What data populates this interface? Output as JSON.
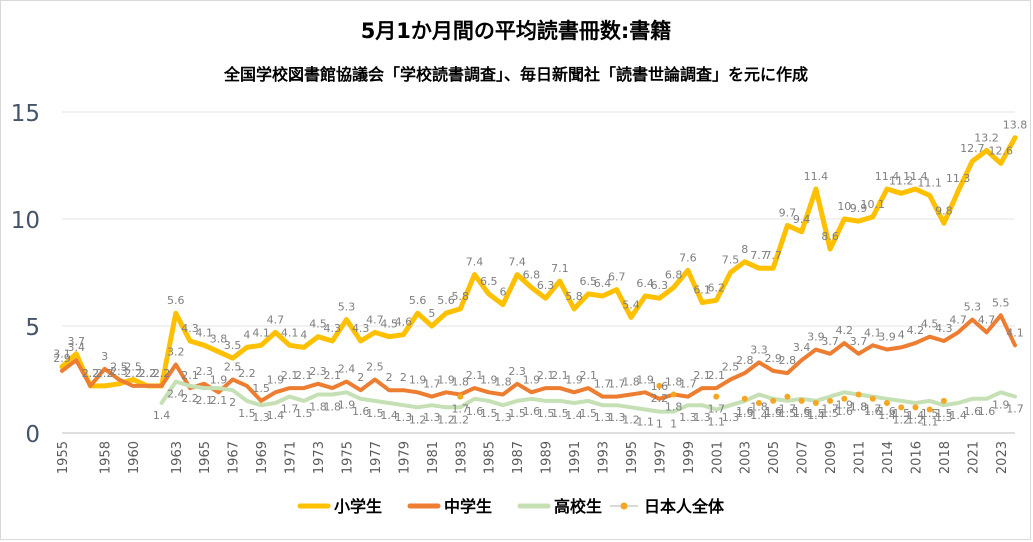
{
  "chart_data": {
    "type": "line",
    "title": "5月1か月間の平均読書冊数:書籍",
    "subtitle": "全国学校図書館協議会「学校読書調査」、毎日新聞社「読書世論調査」を元に作成",
    "xlabel": "",
    "ylabel": "",
    "ylim": [
      0,
      15
    ],
    "yticks": [
      0,
      5,
      10,
      15
    ],
    "grid": true,
    "legend_position": "bottom",
    "x": [
      1955,
      1956,
      1957,
      1958,
      1959,
      1960,
      1961,
      1962,
      1963,
      1964,
      1965,
      1966,
      1967,
      1968,
      1969,
      1970,
      1971,
      1972,
      1973,
      1974,
      1975,
      1976,
      1977,
      1978,
      1979,
      1980,
      1981,
      1982,
      1983,
      1984,
      1985,
      1986,
      1987,
      1988,
      1989,
      1990,
      1991,
      1992,
      1993,
      1994,
      1995,
      1996,
      1997,
      1998,
      1999,
      2000,
      2001,
      2002,
      2003,
      2004,
      2005,
      2006,
      2007,
      2008,
      2009,
      2010,
      2011,
      2012,
      2014,
      2015,
      2016,
      2017,
      2018,
      2019,
      2021,
      2022,
      2023,
      2024
    ],
    "xticks": [
      1955,
      1958,
      1960,
      1963,
      1965,
      1967,
      1969,
      1971,
      1973,
      1975,
      1977,
      1979,
      1981,
      1983,
      1985,
      1987,
      1989,
      1991,
      1993,
      1995,
      1997,
      1999,
      2001,
      2003,
      2005,
      2007,
      2009,
      2011,
      2014,
      2016,
      2018,
      2021,
      2023
    ],
    "series": [
      {
        "name": "小学生",
        "color": "#ffc000",
        "width": 5,
        "values": [
          3.1,
          3.7,
          2.2,
          2.2,
          2.3,
          2.5,
          2.2,
          2.2,
          5.6,
          4.3,
          4.1,
          3.8,
          3.5,
          4,
          4.1,
          4.7,
          4.1,
          4,
          4.5,
          4.3,
          5.3,
          4.3,
          4.7,
          4.5,
          4.6,
          5.6,
          5,
          5.6,
          5.8,
          7.4,
          6.5,
          6,
          7.4,
          6.8,
          6.3,
          7.1,
          5.8,
          6.5,
          6.4,
          6.7,
          5.4,
          6.4,
          6.3,
          6.8,
          7.6,
          6.1,
          6.2,
          7.5,
          8,
          7.7,
          7.7,
          9.7,
          9.4,
          11.4,
          8.6,
          10,
          9.9,
          10.1,
          11.4,
          11.2,
          11.4,
          11.1,
          9.8,
          11.3,
          12.7,
          13.2,
          12.6,
          13.8
        ]
      },
      {
        "name": "中学生",
        "color": "#ed7d31",
        "width": 4,
        "values": [
          2.9,
          3.4,
          2.2,
          3,
          2.5,
          2.2,
          2.2,
          2.2,
          3.2,
          2.1,
          2.3,
          1.9,
          2.5,
          2.2,
          1.5,
          1.9,
          2.1,
          2.1,
          2.3,
          2.1,
          2.4,
          2,
          2.5,
          2,
          2,
          1.9,
          1.7,
          1.9,
          1.8,
          2.1,
          1.9,
          1.8,
          2.3,
          1.9,
          2.1,
          2.1,
          1.9,
          2.1,
          1.7,
          1.7,
          1.8,
          1.9,
          1.6,
          1.8,
          1.7,
          2.1,
          2.1,
          2.5,
          2.8,
          3.3,
          2.9,
          2.8,
          3.4,
          3.9,
          3.7,
          4.2,
          3.7,
          4.1,
          3.9,
          4,
          4.2,
          4.5,
          4.3,
          4.7,
          5.3,
          4.7,
          5.5,
          4.1
        ]
      },
      {
        "name": "高校生",
        "color": "#c5e0b4",
        "width": 4,
        "values": [
          null,
          null,
          null,
          null,
          null,
          null,
          null,
          1.4,
          2.4,
          2.2,
          2.1,
          2.1,
          2,
          1.5,
          1.3,
          1.4,
          1.7,
          1.5,
          1.8,
          1.8,
          1.9,
          1.6,
          1.5,
          1.4,
          1.3,
          1.2,
          1.3,
          1.2,
          1.2,
          1.6,
          1.5,
          1.3,
          1.5,
          1.6,
          1.5,
          1.5,
          1.4,
          1.5,
          1.3,
          1.3,
          1.2,
          1.1,
          1,
          1,
          1.3,
          1.3,
          1.1,
          1.3,
          1.5,
          1.8,
          1.6,
          1.5,
          1.6,
          1.5,
          1.7,
          1.9,
          1.8,
          1.7,
          1.6,
          1.5,
          1.4,
          1.5,
          1.3,
          1.4,
          1.6,
          1.6,
          1.9,
          1.7
        ]
      },
      {
        "name": "日本人全体",
        "color": "#f5a623",
        "width": 2,
        "dashed": true,
        "values": [
          null,
          null,
          null,
          null,
          null,
          null,
          null,
          null,
          null,
          null,
          null,
          null,
          null,
          null,
          null,
          null,
          null,
          null,
          null,
          null,
          null,
          null,
          null,
          null,
          null,
          null,
          null,
          null,
          1.7,
          null,
          null,
          null,
          null,
          null,
          null,
          null,
          null,
          null,
          null,
          null,
          null,
          null,
          2.2,
          1.8,
          null,
          null,
          1.7,
          null,
          1.6,
          1.4,
          1.5,
          1.7,
          1.5,
          1.4,
          1.5,
          1.6,
          1.8,
          1.6,
          1.4,
          1.2,
          1.2,
          1.1,
          1.5,
          null,
          null,
          null,
          null,
          null
        ]
      }
    ]
  }
}
